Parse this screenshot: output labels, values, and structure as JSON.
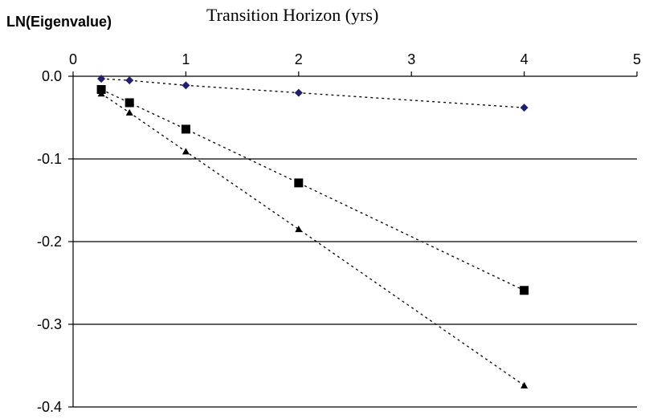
{
  "chart_data": {
    "type": "scatter",
    "title": "",
    "xlabel": "Transition Horizon (yrs)",
    "ylabel": "LN(Eigenvalue)",
    "xlim": [
      0,
      5
    ],
    "ylim": [
      -0.4,
      0.0
    ],
    "x_ticks": [
      "0",
      "1",
      "2",
      "3",
      "4",
      "5"
    ],
    "y_ticks": [
      "0.0",
      "-0.1",
      "-0.2",
      "-0.3",
      "-0.4"
    ],
    "x_axis_position": "top",
    "grid": "horizontal",
    "legend": "none",
    "series": [
      {
        "marker": "diamond",
        "color": "#1f1f6e",
        "line": "dotted",
        "x": [
          0.25,
          0.5,
          1,
          2,
          4
        ],
        "y": [
          -0.003,
          -0.005,
          -0.011,
          -0.02,
          -0.038
        ]
      },
      {
        "marker": "square",
        "color": "#000000",
        "line": "dotted",
        "x": [
          0.25,
          0.5,
          1,
          2,
          4
        ],
        "y": [
          -0.016,
          -0.032,
          -0.064,
          -0.129,
          -0.259
        ]
      },
      {
        "marker": "triangle",
        "color": "#000000",
        "line": "dotted",
        "x": [
          0.25,
          0.5,
          1,
          2,
          4
        ],
        "y": [
          -0.021,
          -0.044,
          -0.091,
          -0.185,
          -0.374
        ]
      }
    ]
  }
}
